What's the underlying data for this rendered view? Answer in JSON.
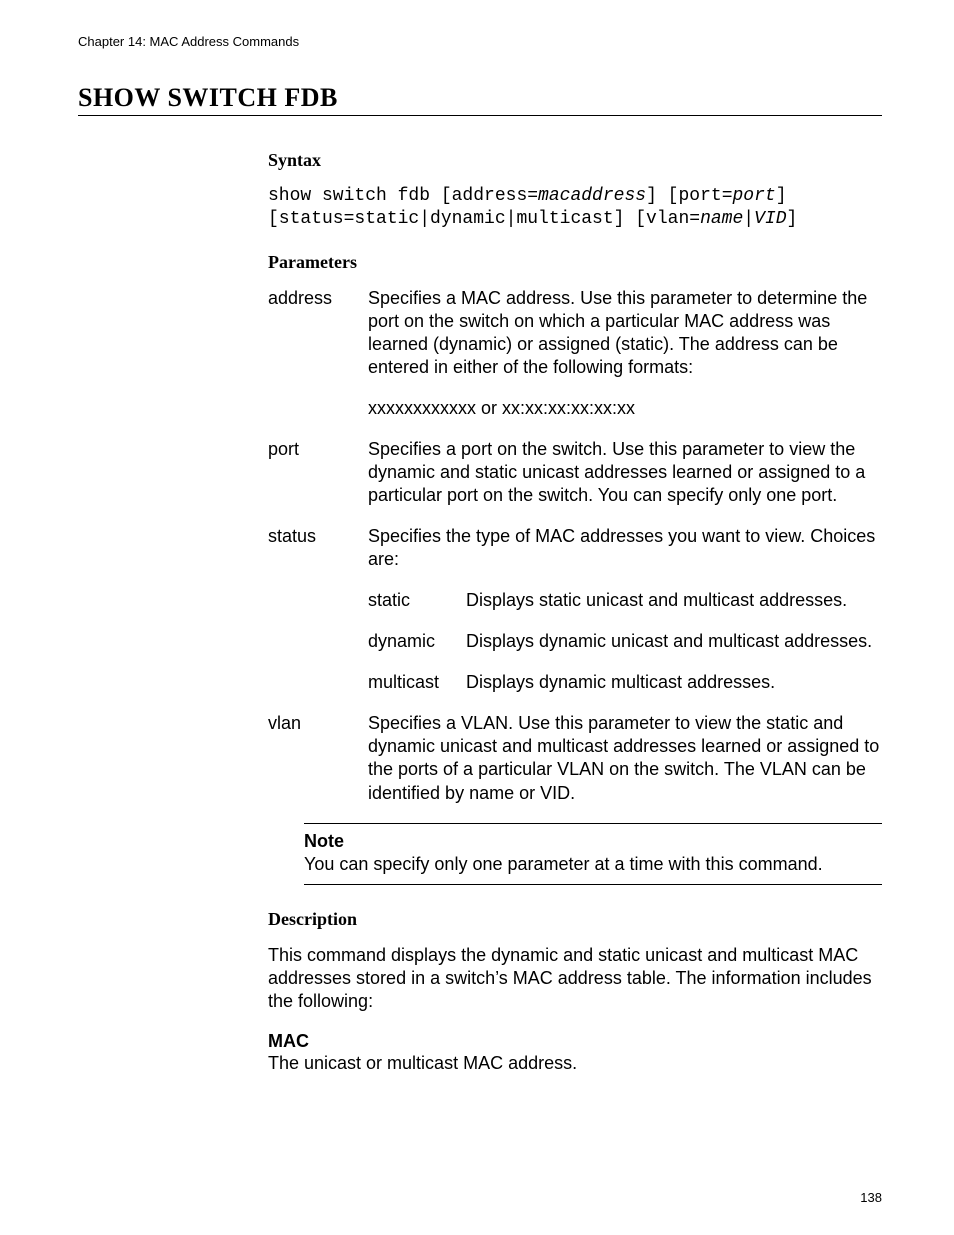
{
  "header": {
    "chapter_line": "Chapter 14: MAC Address Commands"
  },
  "title": "SHOW SWITCH FDB",
  "sections": {
    "syntax": {
      "heading": "Syntax",
      "line1_a": "show switch fdb [address=",
      "line1_b": "macaddress",
      "line1_c": "] [port=",
      "line1_d": "port",
      "line1_e": "]",
      "line2_a": "[status=static|dynamic|multicast] [vlan=",
      "line2_b": "name",
      "line2_c": "|",
      "line2_d": "VID",
      "line2_e": "]"
    },
    "parameters": {
      "heading": "Parameters",
      "items": {
        "address": {
          "term": "address",
          "def": "Specifies a MAC address. Use this parameter to determine the port on the switch on which a particular MAC address was learned (dynamic) or assigned (static). The address can be entered in either of the following formats:",
          "extra": "xxxxxxxxxxxx or xx:xx:xx:xx:xx:xx"
        },
        "port": {
          "term": "port",
          "def": "Specifies a port on the switch. Use this parameter to view the dynamic and static unicast addresses learned or assigned to a particular port on the switch. You can specify only one port."
        },
        "status": {
          "term": "status",
          "def": "Specifies the type of MAC addresses you want to view. Choices are:",
          "choices": {
            "static": {
              "term": "static",
              "def": "Displays static unicast and multicast addresses."
            },
            "dynamic": {
              "term": "dynamic",
              "def": "Displays dynamic unicast and multicast addresses."
            },
            "multicast": {
              "term": "multicast",
              "def": "Displays dynamic multicast addresses."
            }
          }
        },
        "vlan": {
          "term": "vlan",
          "def": "Specifies a VLAN. Use this parameter to view the static and dynamic unicast and multicast addresses learned or assigned to the ports of a particular VLAN on the switch. The VLAN can be identified by name or VID."
        }
      }
    },
    "note": {
      "label": "Note",
      "text": "You can specify only one parameter at a time with this command."
    },
    "description": {
      "heading": "Description",
      "body": "This command displays the dynamic and static unicast and multicast MAC addresses stored in a switch’s MAC address table. The information includes the following:",
      "mac_label": "MAC",
      "mac_text": "The unicast or multicast MAC address."
    }
  },
  "page_number": "138"
}
